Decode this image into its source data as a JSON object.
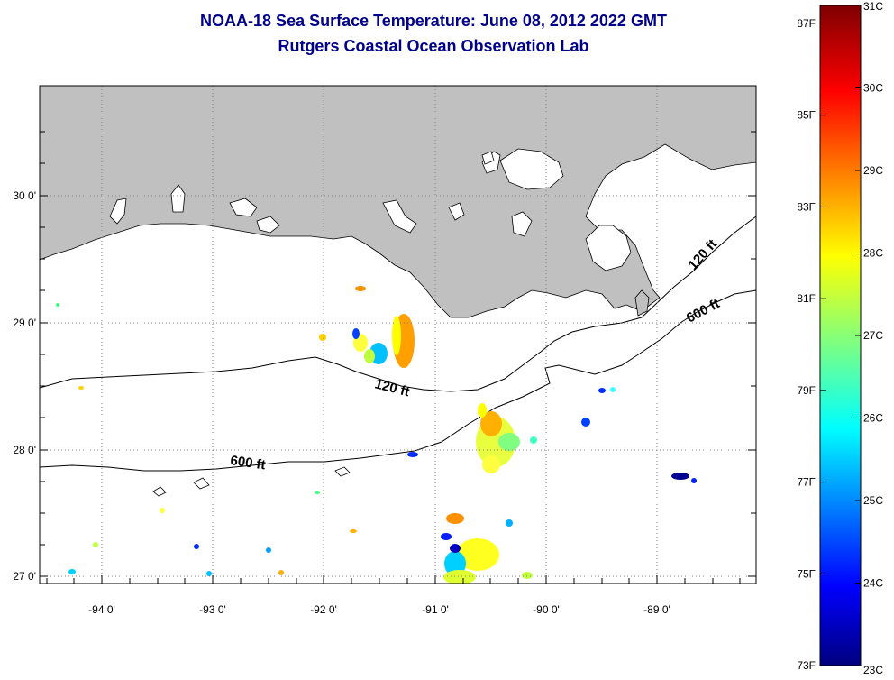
{
  "title": {
    "line1": "NOAA-18 Sea Surface Temperature:  June 08, 2012 2022 GMT",
    "line2": "Rutgers Coastal Ocean Observation Lab"
  },
  "map": {
    "land_color": "#c0c0c0",
    "ocean_color": "#ffffff",
    "lon_labels": [
      "-94 0'",
      "-93 0'",
      "-92 0'",
      "-91 0'",
      "-90 0'",
      "-89 0'"
    ],
    "lat_labels": [
      "30 0'",
      "29 0'",
      "28 0'",
      "27 0'"
    ],
    "contour_labels": [
      {
        "text": "120 ft"
      },
      {
        "text": "120 ft"
      },
      {
        "text": "600 ft"
      },
      {
        "text": "600 ft"
      }
    ]
  },
  "colorbar": {
    "fahrenheit_labels": [
      "87F",
      "85F",
      "83F",
      "81F",
      "79F",
      "77F",
      "75F",
      "73F"
    ],
    "celsius_labels": [
      "31C",
      "30C",
      "29C",
      "28C",
      "27C",
      "26C",
      "25C",
      "24C",
      "23C"
    ],
    "colormap": "jet"
  }
}
